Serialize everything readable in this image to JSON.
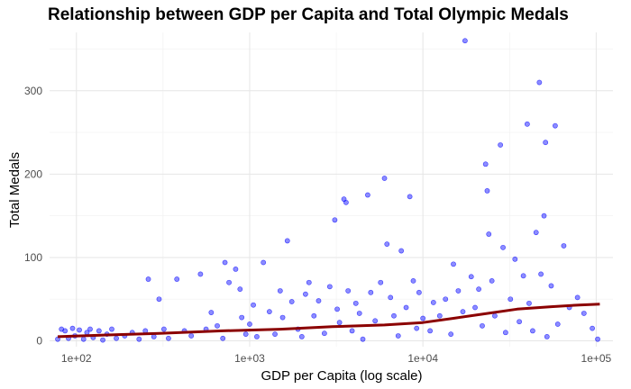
{
  "chart_data": {
    "type": "scatter",
    "title": "Relationship between GDP per Capita and Total Olympic Medals",
    "xlabel": "GDP per Capita (log scale)",
    "ylabel": "Total Medals",
    "xscale": "log10",
    "xlim": [
      70,
      125000
    ],
    "ylim": [
      -7,
      370
    ],
    "x_ticks": [
      100,
      1000,
      10000,
      100000
    ],
    "x_tick_labels": [
      "1e+02",
      "1e+03",
      "1e+04",
      "1e+05"
    ],
    "y_ticks": [
      0,
      100,
      200,
      300
    ],
    "y_tick_labels": [
      "0",
      "100",
      "200",
      "300"
    ],
    "grid": true,
    "point_color": "#0000ff",
    "point_opacity": 0.45,
    "trend_color": "#8b0000",
    "points": [
      [
        78,
        2
      ],
      [
        82,
        14
      ],
      [
        86,
        12
      ],
      [
        90,
        3
      ],
      [
        95,
        15
      ],
      [
        98,
        6
      ],
      [
        104,
        13
      ],
      [
        110,
        2
      ],
      [
        115,
        10
      ],
      [
        120,
        14
      ],
      [
        125,
        4
      ],
      [
        135,
        12
      ],
      [
        142,
        1
      ],
      [
        150,
        8
      ],
      [
        160,
        14
      ],
      [
        170,
        3
      ],
      [
        190,
        6
      ],
      [
        210,
        10
      ],
      [
        230,
        2
      ],
      [
        250,
        12
      ],
      [
        260,
        74
      ],
      [
        280,
        5
      ],
      [
        300,
        50
      ],
      [
        320,
        14
      ],
      [
        340,
        3
      ],
      [
        380,
        74
      ],
      [
        420,
        12
      ],
      [
        460,
        6
      ],
      [
        520,
        80
      ],
      [
        560,
        14
      ],
      [
        600,
        34
      ],
      [
        650,
        18
      ],
      [
        700,
        3
      ],
      [
        720,
        94
      ],
      [
        760,
        70
      ],
      [
        830,
        86
      ],
      [
        880,
        62
      ],
      [
        900,
        28
      ],
      [
        950,
        8
      ],
      [
        1000,
        20
      ],
      [
        1050,
        43
      ],
      [
        1100,
        5
      ],
      [
        1200,
        94
      ],
      [
        1300,
        35
      ],
      [
        1400,
        8
      ],
      [
        1500,
        60
      ],
      [
        1550,
        28
      ],
      [
        1650,
        120
      ],
      [
        1750,
        47
      ],
      [
        1900,
        14
      ],
      [
        2000,
        5
      ],
      [
        2100,
        56
      ],
      [
        2200,
        70
      ],
      [
        2350,
        30
      ],
      [
        2500,
        48
      ],
      [
        2700,
        9
      ],
      [
        2900,
        65
      ],
      [
        3100,
        145
      ],
      [
        3200,
        38
      ],
      [
        3300,
        22
      ],
      [
        3500,
        170
      ],
      [
        3600,
        166
      ],
      [
        3700,
        60
      ],
      [
        3900,
        12
      ],
      [
        4100,
        45
      ],
      [
        4300,
        33
      ],
      [
        4500,
        2
      ],
      [
        4800,
        175
      ],
      [
        5000,
        58
      ],
      [
        5300,
        24
      ],
      [
        5700,
        70
      ],
      [
        6000,
        195
      ],
      [
        6200,
        116
      ],
      [
        6500,
        52
      ],
      [
        6800,
        30
      ],
      [
        7200,
        6
      ],
      [
        7500,
        108
      ],
      [
        8000,
        40
      ],
      [
        8400,
        173
      ],
      [
        8800,
        72
      ],
      [
        9200,
        15
      ],
      [
        9500,
        58
      ],
      [
        10000,
        27
      ],
      [
        11000,
        12
      ],
      [
        11500,
        46
      ],
      [
        12500,
        30
      ],
      [
        13500,
        50
      ],
      [
        14500,
        8
      ],
      [
        15000,
        92
      ],
      [
        16000,
        60
      ],
      [
        17000,
        35
      ],
      [
        17500,
        360
      ],
      [
        19000,
        77
      ],
      [
        20000,
        40
      ],
      [
        21000,
        62
      ],
      [
        22000,
        18
      ],
      [
        23000,
        212
      ],
      [
        23500,
        180
      ],
      [
        24000,
        128
      ],
      [
        25000,
        72
      ],
      [
        26000,
        30
      ],
      [
        28000,
        235
      ],
      [
        29000,
        112
      ],
      [
        30000,
        10
      ],
      [
        32000,
        50
      ],
      [
        34000,
        98
      ],
      [
        36000,
        23
      ],
      [
        38000,
        78
      ],
      [
        40000,
        260
      ],
      [
        41000,
        45
      ],
      [
        43000,
        12
      ],
      [
        45000,
        130
      ],
      [
        47000,
        310
      ],
      [
        48000,
        80
      ],
      [
        50000,
        150
      ],
      [
        51000,
        238
      ],
      [
        52000,
        5
      ],
      [
        55000,
        66
      ],
      [
        58000,
        258
      ],
      [
        60000,
        20
      ],
      [
        65000,
        114
      ],
      [
        70000,
        40
      ],
      [
        78000,
        52
      ],
      [
        85000,
        33
      ],
      [
        95000,
        15
      ],
      [
        102000,
        2
      ]
    ],
    "trend": [
      [
        78,
        5
      ],
      [
        150,
        7
      ],
      [
        300,
        9
      ],
      [
        700,
        12
      ],
      [
        1500,
        14
      ],
      [
        3000,
        17
      ],
      [
        6000,
        19
      ],
      [
        10000,
        22
      ],
      [
        15000,
        27
      ],
      [
        22000,
        32
      ],
      [
        35000,
        38
      ],
      [
        55000,
        41
      ],
      [
        80000,
        43
      ],
      [
        105000,
        44
      ]
    ]
  }
}
